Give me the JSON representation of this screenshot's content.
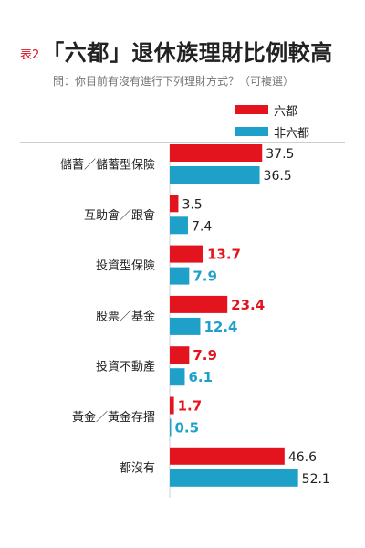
{
  "title_prefix": "表2",
  "title": "「六都」退休族理財比例較高",
  "subtitle": "問：你目前有沒有進行下列理財方式？（可複選）",
  "colors": {
    "accent": "#d8121f",
    "series_a": "#e4141e",
    "series_b": "#1ea0c9",
    "text": "#222222"
  },
  "chart_data": {
    "type": "bar",
    "orientation": "horizontal",
    "title": "「六都」退休族理財比例較高",
    "subtitle": "問：你目前有沒有進行下列理財方式？（可複選）",
    "xlabel": "",
    "ylabel": "",
    "legend_position": "top-right",
    "grid": false,
    "xlim": [
      0,
      55
    ],
    "categories": [
      "儲蓄／儲蓄型保險",
      "互助會／跟會",
      "投資型保險",
      "股票／基金",
      "投資不動產",
      "黃金／黃金存摺",
      "都沒有"
    ],
    "series": [
      {
        "name": "六都",
        "color": "#e4141e",
        "values": [
          37.5,
          3.5,
          13.7,
          23.4,
          7.9,
          1.7,
          46.6
        ],
        "value_labels": [
          "37.5",
          "3.5",
          "13.7",
          "23.4",
          "7.9",
          "1.7",
          "46.6"
        ]
      },
      {
        "name": "非六都",
        "color": "#1ea0c9",
        "values": [
          36.5,
          7.4,
          7.9,
          12.4,
          6.1,
          0.5,
          52.1
        ],
        "value_labels": [
          "36.5",
          "7.4",
          "7.9",
          "12.4",
          "6.1",
          "0.5",
          "52.1"
        ]
      }
    ],
    "highlighted_categories": [
      "投資型保險",
      "股票／基金",
      "投資不動產",
      "黃金／黃金存摺"
    ]
  }
}
